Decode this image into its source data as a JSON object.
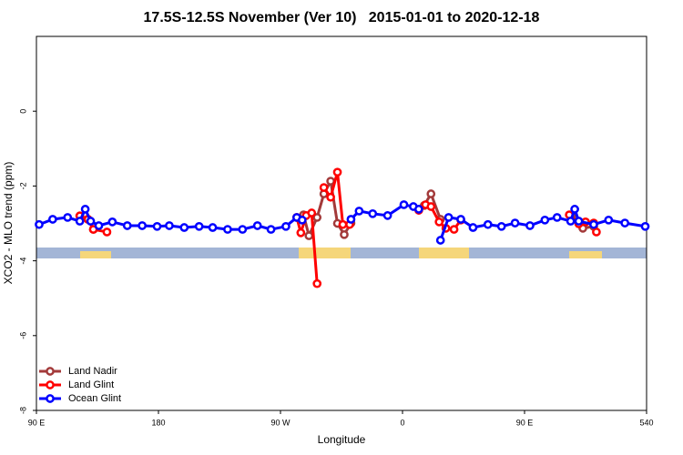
{
  "chart_data": {
    "type": "line",
    "title": "17.5S-12.5S November (Ver 10)   2015-01-01 to 2020-12-18",
    "x_label": "Longitude",
    "y_label": "XCO2 - MLO trend (ppm)",
    "xlim": [
      90,
      540
    ],
    "ylim": [
      -8,
      2
    ],
    "xticks": [
      {
        "value": 90,
        "label": "90 E"
      },
      180,
      {
        "value": 270,
        "label": "90 W"
      },
      {
        "value": 360,
        "label": "0"
      },
      {
        "value": 450,
        "label": "90 E"
      },
      540
    ],
    "yticks": [
      0,
      -2,
      -4,
      -6,
      -8
    ],
    "legend": "bottom-left",
    "series": [
      {
        "name": "Land Nadir",
        "color": "#a33a3a",
        "x": [
          122,
          128,
          132,
          null,
          282,
          287,
          291,
          297,
          302,
          307,
          312,
          317,
          322,
          null,
          376,
          381,
          388,
          null,
          485,
          493,
          501
        ],
        "values": [
          -2.8,
          -2.89,
          -3.16,
          null,
          -2.84,
          -2.77,
          -3.33,
          -2.84,
          -2.21,
          -1.87,
          -3.0,
          -3.3,
          -2.99,
          null,
          -2.52,
          -2.21,
          -2.89,
          null,
          -2.77,
          -3.13,
          -3.08
        ]
      },
      {
        "name": "Land Glint",
        "color": "#ff0000",
        "x": [
          122,
          128,
          132,
          142,
          null,
          282,
          285,
          289,
          293,
          297,
          null,
          302,
          307,
          312,
          316,
          321,
          null,
          372,
          377,
          381,
          387,
          392,
          398,
          403,
          null,
          483,
          490,
          495,
          501,
          503
        ],
        "values": [
          -2.8,
          -2.89,
          -3.16,
          -3.23,
          null,
          -2.84,
          -3.25,
          -2.79,
          -2.72,
          -4.61,
          null,
          -2.04,
          -2.3,
          -1.63,
          -3.03,
          -3.03,
          null,
          -2.65,
          -2.5,
          -2.55,
          -2.96,
          -3.13,
          -3.16,
          -2.91,
          null,
          -2.77,
          -3.01,
          -2.96,
          -2.99,
          -3.23
        ]
      },
      {
        "name": "Ocean Glint",
        "color": "#0000ff",
        "x": [
          92,
          102,
          113,
          122,
          126,
          130,
          136,
          146,
          157,
          168,
          179,
          188,
          199,
          210,
          220,
          231,
          242,
          253,
          263,
          274,
          282,
          286,
          null,
          322,
          328,
          338,
          349,
          361,
          368,
          372,
          null,
          388,
          394,
          403,
          412,
          423,
          433,
          443,
          454,
          465,
          474,
          484,
          487,
          490,
          501,
          512,
          524,
          539
        ],
        "values": [
          -3.03,
          -2.89,
          -2.84,
          -2.94,
          -2.62,
          -2.94,
          -3.06,
          -2.96,
          -3.06,
          -3.06,
          -3.08,
          -3.06,
          -3.11,
          -3.08,
          -3.11,
          -3.16,
          -3.16,
          -3.06,
          -3.16,
          -3.08,
          -2.84,
          -2.91,
          null,
          -2.89,
          -2.67,
          -2.74,
          -2.79,
          -2.5,
          -2.55,
          -2.62,
          null,
          -3.45,
          -2.84,
          -2.89,
          -3.11,
          -3.03,
          -3.08,
          -2.99,
          -3.06,
          -2.91,
          -2.84,
          -2.94,
          -2.62,
          -2.94,
          -3.03,
          -2.91,
          -2.99,
          -3.08
        ]
      }
    ]
  }
}
